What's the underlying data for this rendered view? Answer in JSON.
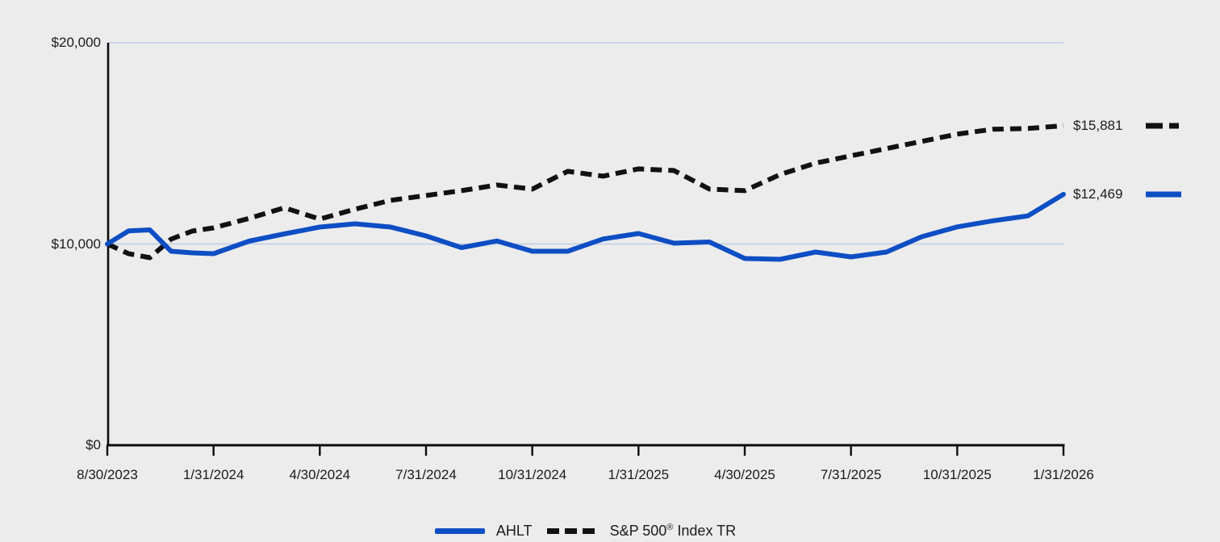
{
  "chart_data": {
    "type": "line",
    "title": "",
    "xlabel": "",
    "ylabel": "",
    "ylim": [
      0,
      20000
    ],
    "grid": "horizontal-only",
    "grid_values": [
      10000,
      20000
    ],
    "y_ticks": [
      {
        "value": 0,
        "label": "$0"
      },
      {
        "value": 10000,
        "label": "$10,000"
      },
      {
        "value": 20000,
        "label": "$20,000"
      }
    ],
    "x_tick_labels": [
      "8/30/2023",
      "1/31/2024",
      "4/30/2024",
      "7/31/2024",
      "10/31/2024",
      "1/31/2025",
      "4/30/2025",
      "7/31/2025",
      "10/31/2025",
      "1/31/2026"
    ],
    "x_tick_month_indices": [
      0,
      5,
      8,
      11,
      14,
      17,
      20,
      23,
      26,
      29
    ],
    "legend_position": "bottom-center",
    "series": [
      {
        "name": "S&P 500® Index TR",
        "style": "dashed",
        "color": "#111111",
        "end_label": "$15,881",
        "end_value": 15881,
        "values": [
          10000,
          9520,
          9320,
          10240,
          10640,
          10800,
          11270,
          11800,
          11240,
          11730,
          12170,
          12410,
          12650,
          12930,
          12730,
          13610,
          13370,
          13730,
          13650,
          12730,
          12650,
          13450,
          14020,
          14380,
          14740,
          15100,
          15460,
          15700,
          15740,
          15881
        ]
      },
      {
        "name": "AHLT",
        "style": "solid",
        "color": "#0E4EC4",
        "end_label": "$12,469",
        "end_value": 12469,
        "values": [
          10000,
          10650,
          10700,
          9640,
          9560,
          9520,
          10140,
          10500,
          10840,
          11000,
          10840,
          10400,
          9820,
          10150,
          9640,
          9640,
          10250,
          10520,
          10040,
          10100,
          9280,
          9240,
          9600,
          9360,
          9600,
          10360,
          10850,
          11150,
          11400,
          12469
        ]
      }
    ]
  },
  "legend": {
    "items": [
      {
        "pre": "AHLT",
        "sup": "",
        "post": "",
        "swatch": "solid-blue-line"
      },
      {
        "pre": "S&P 500",
        "sup": "®",
        "post": " Index TR",
        "swatch": "dashed-black-line"
      }
    ]
  },
  "colors": {
    "accent_blue": "#0E4EC4",
    "line_black": "#111111",
    "gridline": "#BFCBE6",
    "axis": "#0d0d0d",
    "background": "#ECECEC",
    "text": "#1b1b1b"
  }
}
